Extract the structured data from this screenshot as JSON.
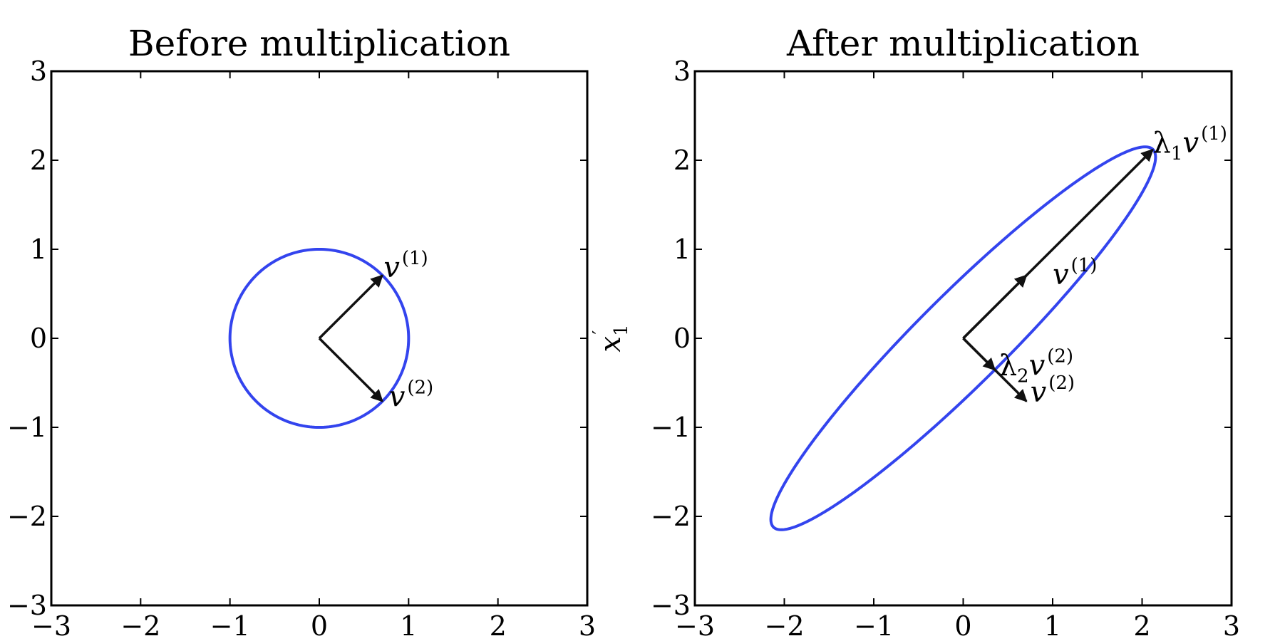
{
  "chart_data": [
    {
      "type": "line",
      "title": "Before multiplication",
      "xlabel": "",
      "ylabel": "",
      "xlim": [
        -3,
        3
      ],
      "ylim": [
        -3,
        3
      ],
      "xticks": [
        "−3",
        "−2",
        "−1",
        "0",
        "1",
        "2",
        "3"
      ],
      "yticks": [
        "−3",
        "−2",
        "−1",
        "0",
        "1",
        "2",
        "3"
      ],
      "grid": false,
      "series": [
        {
          "kind": "ellipse",
          "center": [
            0,
            0
          ],
          "axes": [
            [
              0.7071,
              0.7071
            ],
            [
              0.7071,
              -0.7071
            ]
          ],
          "radii": [
            1,
            1
          ],
          "color": "#3344ee"
        }
      ],
      "arrows": [
        {
          "from": [
            0,
            0
          ],
          "to": [
            0.707,
            0.707
          ],
          "label": "v",
          "sup": "(1)",
          "sub": "",
          "label_pos": [
            0.72,
            0.8
          ]
        },
        {
          "from": [
            0,
            0
          ],
          "to": [
            0.707,
            -0.707
          ],
          "label": "v",
          "sup": "(2)",
          "sub": "",
          "label_pos": [
            0.78,
            -0.65
          ]
        }
      ]
    },
    {
      "type": "line",
      "title": "After multiplication",
      "xlabel": "",
      "ylabel": "x",
      "ylabel_sub": "1",
      "ylabel_prime": "′",
      "xlim": [
        -3,
        3
      ],
      "ylim": [
        -3,
        3
      ],
      "xticks": [
        "−3",
        "−2",
        "−1",
        "0",
        "1",
        "2",
        "3"
      ],
      "yticks": [
        "−3",
        "−2",
        "−1",
        "0",
        "1",
        "2",
        "3"
      ],
      "grid": false,
      "series": [
        {
          "kind": "ellipse",
          "center": [
            0,
            0
          ],
          "axes": [
            [
              0.7071,
              0.7071
            ],
            [
              0.7071,
              -0.7071
            ]
          ],
          "radii": [
            3,
            0.5
          ],
          "color": "#3344ee"
        }
      ],
      "arrows": [
        {
          "from": [
            0,
            0
          ],
          "to": [
            2.12,
            2.12
          ],
          "label": "λ",
          "sub": "1",
          "sup": "(1)",
          "label_pos": [
            2.12,
            2.2
          ],
          "greek": true
        },
        {
          "from": [
            0,
            0
          ],
          "to": [
            0.707,
            0.707
          ],
          "label": "v",
          "sup": "(1)",
          "sub": "",
          "label_pos": [
            1.0,
            0.72
          ]
        },
        {
          "from": [
            0,
            0
          ],
          "to": [
            0.354,
            -0.354
          ],
          "label": "λ",
          "sub": "2",
          "sup": "(2)",
          "label_pos": [
            0.4,
            -0.3
          ],
          "greek": true
        },
        {
          "from": [
            0,
            0
          ],
          "to": [
            0.707,
            -0.707
          ],
          "label": "v",
          "sup": "(2)",
          "sub": "",
          "label_pos": [
            0.75,
            -0.6
          ]
        }
      ]
    }
  ]
}
